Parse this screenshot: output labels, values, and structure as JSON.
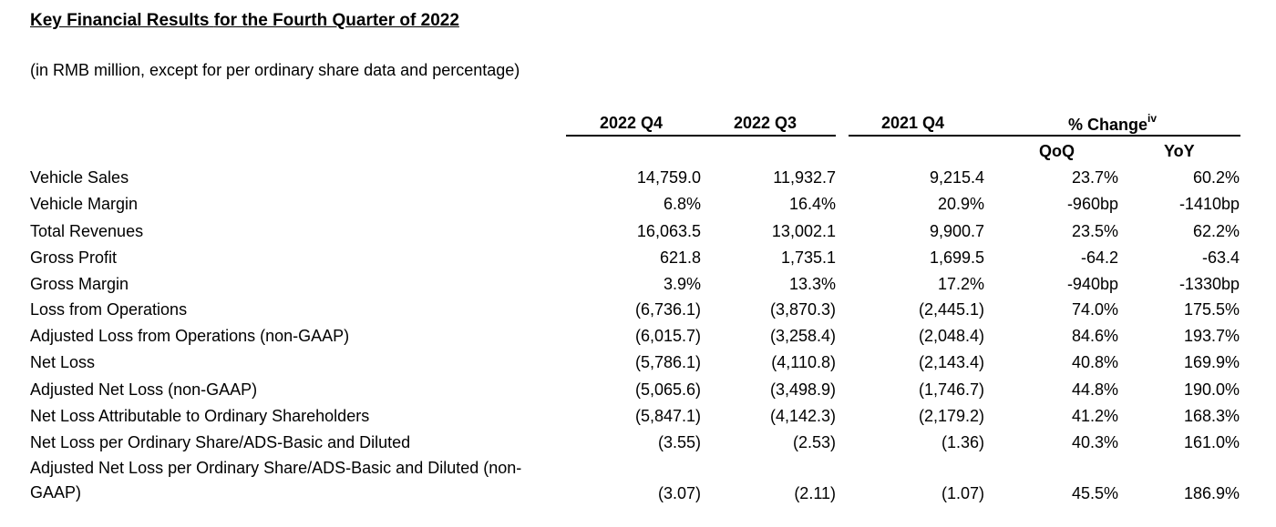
{
  "title_part1": "Key Financial Results",
  "title_part2": "for the Fourth Quarter of 2022",
  "subtitle": "(in RMB million, except for per ordinary share data and percentage)",
  "headers": {
    "q4_2022": "2022 Q4",
    "q3_2022": "2022 Q3",
    "q4_2021": "2021 Q4",
    "pct_change": "% Change",
    "pct_change_sup": "iv",
    "qoq": "QoQ",
    "yoy": "YoY"
  },
  "rows": [
    {
      "label": "Vehicle Sales",
      "q4_2022": "14,759.0",
      "q3_2022": "11,932.7",
      "q4_2021": "9,215.4",
      "qoq": "23.7%",
      "yoy": "60.2%"
    },
    {
      "label": "Vehicle Margin",
      "q4_2022": "6.8%",
      "q3_2022": "16.4%",
      "q4_2021": "20.9%",
      "qoq": "-960bp",
      "yoy": "-1410bp"
    },
    {
      "label": "Total Revenues",
      "q4_2022": "16,063.5",
      "q3_2022": "13,002.1",
      "q4_2021": "9,900.7",
      "qoq": "23.5%",
      "yoy": "62.2%"
    },
    {
      "label": "Gross Profit",
      "q4_2022": "621.8",
      "q3_2022": "1,735.1",
      "q4_2021": "1,699.5",
      "qoq": "-64.2",
      "yoy": "-63.4"
    },
    {
      "label": "Gross Margin",
      "q4_2022": "3.9%",
      "q3_2022": "13.3%",
      "q4_2021": "17.2%",
      "qoq": "-940bp",
      "yoy": "-1330bp"
    },
    {
      "label": "Loss from Operations",
      "q4_2022": "(6,736.1)",
      "q3_2022": "(3,870.3)",
      "q4_2021": "(2,445.1)",
      "qoq": "74.0%",
      "yoy": "175.5%"
    },
    {
      "label": "Adjusted Loss from Operations (non-GAAP)",
      "q4_2022": "(6,015.7)",
      "q3_2022": "(3,258.4)",
      "q4_2021": "(2,048.4)",
      "qoq": "84.6%",
      "yoy": "193.7%"
    },
    {
      "label": "Net Loss",
      "q4_2022": "(5,786.1)",
      "q3_2022": "(4,110.8)",
      "q4_2021": "(2,143.4)",
      "qoq": "40.8%",
      "yoy": "169.9%"
    },
    {
      "label": "Adjusted Net Loss (non-GAAP)",
      "q4_2022": "(5,065.6)",
      "q3_2022": "(3,498.9)",
      "q4_2021": "(1,746.7)",
      "qoq": "44.8%",
      "yoy": "190.0%"
    },
    {
      "label": "Net Loss Attributable to Ordinary Shareholders",
      "q4_2022": "(5,847.1)",
      "q3_2022": "(4,142.3)",
      "q4_2021": "(2,179.2)",
      "qoq": "41.2%",
      "yoy": "168.3%"
    },
    {
      "label": "Net Loss per Ordinary Share/ADS-Basic and Diluted",
      "q4_2022": "(3.55)",
      "q3_2022": "(2.53)",
      "q4_2021": "(1.36)",
      "qoq": "40.3%",
      "yoy": "161.0%"
    },
    {
      "label": "Adjusted Net Loss per Ordinary Share/ADS-Basic and Diluted (non-GAAP)",
      "q4_2022": "(3.07)",
      "q3_2022": "(2.11)",
      "q4_2021": "(1.07)",
      "qoq": "45.5%",
      "yoy": "186.9%"
    }
  ]
}
